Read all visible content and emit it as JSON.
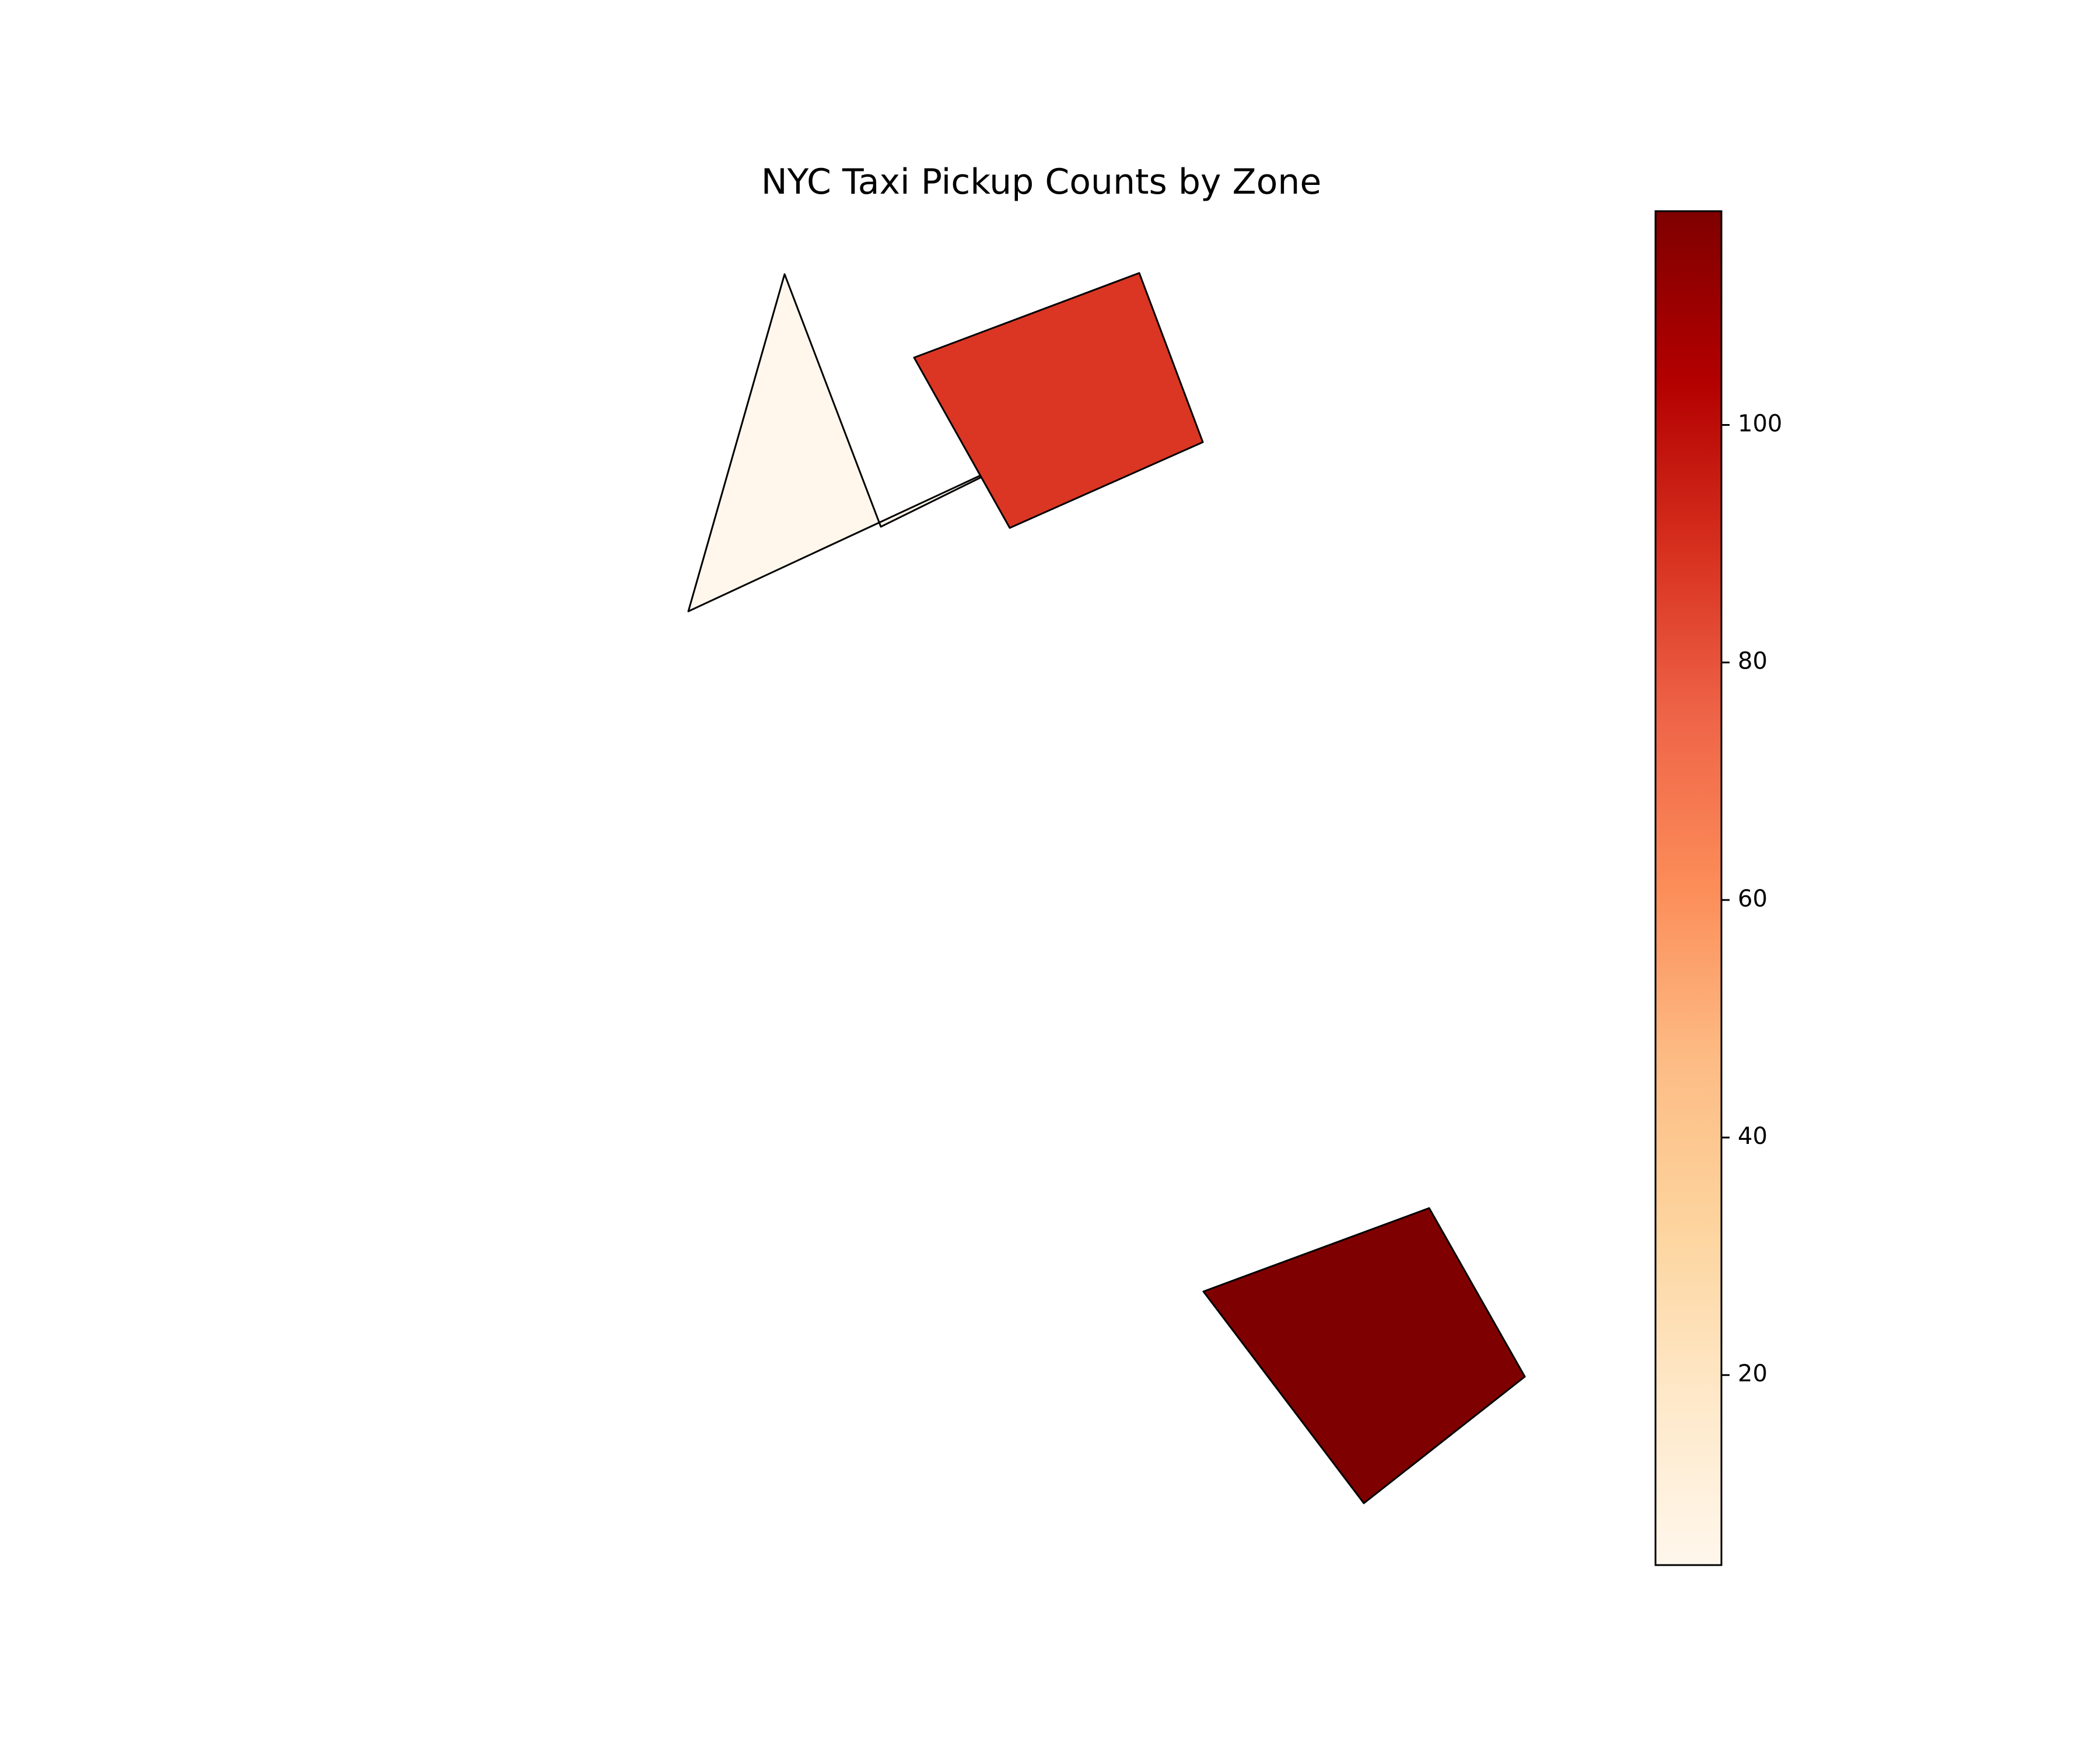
{
  "chart_data": {
    "type": "choropleth",
    "title": "NYC Taxi Pickup Counts by Zone",
    "zones": [
      {
        "value": 4
      },
      {
        "value": 88
      },
      {
        "value": 118
      }
    ],
    "colorbar": {
      "cmap": "OrRd",
      "min": 4,
      "max": 118,
      "ticks": [
        20,
        40,
        60,
        80,
        100
      ],
      "tick_labels": [
        "20",
        "40",
        "60",
        "80",
        "100"
      ]
    }
  }
}
